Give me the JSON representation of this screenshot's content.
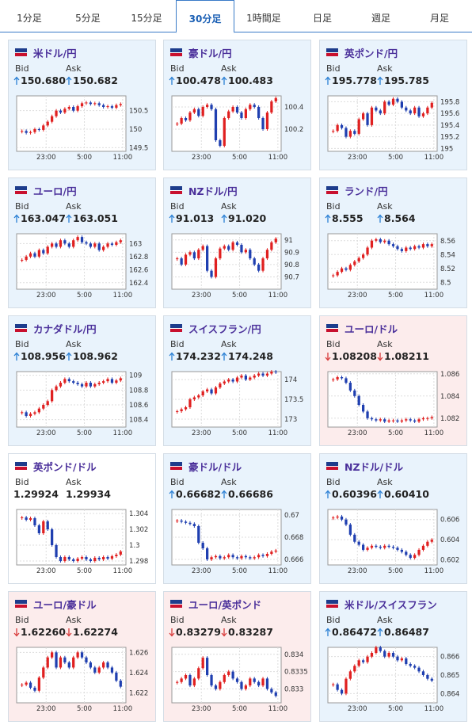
{
  "tabs": [
    "1分足",
    "5分足",
    "15分足",
    "30分足",
    "1時間足",
    "日足",
    "週足",
    "月足"
  ],
  "active_tab": 3,
  "panels": [
    {
      "title": "米ドル/円",
      "bid_label": "Bid",
      "ask_label": "Ask",
      "bid": "150.680",
      "ask": "150.682",
      "direction": "up",
      "chart": {
        "ylim": [
          149.4,
          150.9
        ],
        "yticks": [
          149.5,
          150,
          150.5
        ],
        "xticks": [
          "23:00",
          "5:00",
          "11:00"
        ],
        "closes": [
          149.95,
          149.9,
          149.92,
          150.0,
          149.98,
          150.1,
          150.2,
          150.35,
          150.5,
          150.45,
          150.55,
          150.6,
          150.5,
          150.62,
          150.7,
          150.72,
          150.68,
          150.7,
          150.65,
          150.6,
          150.62,
          150.58,
          150.65,
          150.68
        ]
      }
    },
    {
      "title": "豪ドル/円",
      "bid_label": "Bid",
      "ask_label": "Ask",
      "bid": "100.478",
      "ask": "100.483",
      "direction": "up",
      "chart": {
        "ylim": [
          100.0,
          100.5
        ],
        "yticks": [
          100.2,
          100.4
        ],
        "xticks": [
          "23:00",
          "5:00",
          "11:00"
        ],
        "closes": [
          100.25,
          100.3,
          100.28,
          100.35,
          100.38,
          100.32,
          100.4,
          100.42,
          100.38,
          100.1,
          100.05,
          100.3,
          100.36,
          100.4,
          100.35,
          100.3,
          100.38,
          100.42,
          100.4,
          100.3,
          100.2,
          100.35,
          100.45,
          100.48
        ]
      }
    },
    {
      "title": "英ポンド/円",
      "bid_label": "Bid",
      "ask_label": "Ask",
      "bid": "195.778",
      "ask": "195.785",
      "direction": "up",
      "chart": {
        "ylim": [
          194.95,
          195.9
        ],
        "yticks": [
          195,
          195.2,
          195.4,
          195.6,
          195.8
        ],
        "xticks": [
          "23:00",
          "5:00",
          "11:00"
        ],
        "closes": [
          195.3,
          195.4,
          195.35,
          195.2,
          195.3,
          195.25,
          195.5,
          195.6,
          195.4,
          195.7,
          195.65,
          195.6,
          195.8,
          195.75,
          195.85,
          195.8,
          195.7,
          195.65,
          195.6,
          195.7,
          195.55,
          195.6,
          195.7,
          195.78
        ]
      }
    },
    {
      "title": "ユーロ/円",
      "bid_label": "Bid",
      "ask_label": "Ask",
      "bid": "163.047",
      "ask": "163.051",
      "direction": "up",
      "chart": {
        "ylim": [
          162.3,
          163.15
        ],
        "yticks": [
          162.4,
          162.6,
          162.8,
          163
        ],
        "xticks": [
          "23:00",
          "5:00",
          "11:00"
        ],
        "closes": [
          162.75,
          162.8,
          162.85,
          162.8,
          162.9,
          162.85,
          162.95,
          163,
          162.95,
          163.05,
          163.0,
          162.95,
          163.05,
          163.1,
          163.02,
          163.0,
          162.95,
          163.0,
          162.9,
          162.95,
          163.0,
          162.98,
          163.02,
          163.05
        ]
      }
    },
    {
      "title": "NZドル/円",
      "bid_label": "Bid",
      "ask_label": "Ask",
      "bid": "91.013",
      "ask": "91.020",
      "direction": "up",
      "chart": {
        "ylim": [
          90.6,
          91.05
        ],
        "yticks": [
          90.7,
          90.8,
          90.9,
          91
        ],
        "xticks": [
          "23:00",
          "5:00",
          "11:00"
        ],
        "closes": [
          90.85,
          90.8,
          90.88,
          90.9,
          90.85,
          90.92,
          90.95,
          90.75,
          90.7,
          90.85,
          90.93,
          90.95,
          90.92,
          90.98,
          90.96,
          90.9,
          90.92,
          90.85,
          90.8,
          90.75,
          90.85,
          90.92,
          90.98,
          91.01
        ]
      }
    },
    {
      "title": "ランド/円",
      "bid_label": "Bid",
      "ask_label": "Ask",
      "bid": "8.555",
      "ask": "8.564",
      "direction": "up",
      "chart": {
        "ylim": [
          8.49,
          8.57
        ],
        "yticks": [
          8.5,
          8.52,
          8.54,
          8.56
        ],
        "xticks": [
          "23:00",
          "5:00",
          "11:00"
        ],
        "closes": [
          8.51,
          8.515,
          8.52,
          8.518,
          8.525,
          8.53,
          8.535,
          8.54,
          8.55,
          8.56,
          8.562,
          8.558,
          8.56,
          8.555,
          8.552,
          8.548,
          8.545,
          8.55,
          8.548,
          8.552,
          8.55,
          8.555,
          8.552,
          8.555
        ]
      }
    },
    {
      "title": "カナダドル/円",
      "bid_label": "Bid",
      "ask_label": "Ask",
      "bid": "108.956",
      "ask": "108.962",
      "direction": "up",
      "chart": {
        "ylim": [
          108.3,
          109.05
        ],
        "yticks": [
          108.4,
          108.6,
          108.8,
          109
        ],
        "xticks": [
          "23:00",
          "5:00",
          "11:00"
        ],
        "closes": [
          108.5,
          108.45,
          108.48,
          108.5,
          108.55,
          108.6,
          108.65,
          108.8,
          108.85,
          108.9,
          108.95,
          108.92,
          108.9,
          108.88,
          108.85,
          108.9,
          108.85,
          108.88,
          108.9,
          108.92,
          108.95,
          108.9,
          108.93,
          108.96
        ]
      }
    },
    {
      "title": "スイスフラン/円",
      "bid_label": "Bid",
      "ask_label": "Ask",
      "bid": "174.232",
      "ask": "174.248",
      "direction": "up",
      "chart": {
        "ylim": [
          172.8,
          174.2
        ],
        "yticks": [
          173,
          173.5,
          174
        ],
        "xticks": [
          "23:00",
          "5:00",
          "11:00"
        ],
        "closes": [
          173.2,
          173.25,
          173.3,
          173.5,
          173.55,
          173.6,
          173.7,
          173.75,
          173.65,
          173.8,
          173.9,
          173.95,
          174.0,
          173.95,
          174.05,
          174.1,
          174.0,
          174.05,
          174.1,
          174.15,
          174.1,
          174.15,
          174.2,
          174.18
        ]
      }
    },
    {
      "title": "ユーロ/ドル",
      "bid_label": "Bid",
      "ask_label": "Ask",
      "bid": "1.08208",
      "ask": "1.08211",
      "direction": "down",
      "chart": {
        "ylim": [
          1.0812,
          1.0862
        ],
        "yticks": [
          1.082,
          1.084,
          1.086
        ],
        "xticks": [
          "23:00",
          "5:00",
          "11:00"
        ],
        "closes": [
          1.0855,
          1.0857,
          1.0856,
          1.0852,
          1.0845,
          1.084,
          1.0832,
          1.0826,
          1.082,
          1.0819,
          1.0818,
          1.0819,
          1.0817,
          1.0818,
          1.0818,
          1.0817,
          1.0818,
          1.0819,
          1.0818,
          1.0817,
          1.0819,
          1.082,
          1.082,
          1.0821
        ]
      }
    },
    {
      "title": "英ポンド/ドル",
      "bid_label": "Bid",
      "ask_label": "Ask",
      "bid": "1.29924",
      "ask": "1.29934",
      "direction": "none",
      "chart": {
        "ylim": [
          1.2975,
          1.3045
        ],
        "yticks": [
          1.298,
          1.3,
          1.302,
          1.304
        ],
        "xticks": [
          "23:00",
          "5:00",
          "11:00"
        ],
        "closes": [
          1.3035,
          1.3032,
          1.3034,
          1.3025,
          1.3015,
          1.303,
          1.302,
          1.3,
          1.2985,
          1.298,
          1.2985,
          1.2982,
          1.298,
          1.2983,
          1.2985,
          1.2982,
          1.298,
          1.2984,
          1.2982,
          1.2985,
          1.2983,
          1.2986,
          1.2988,
          1.2992
        ]
      }
    },
    {
      "title": "豪ドル/ドル",
      "bid_label": "Bid",
      "ask_label": "Ask",
      "bid": "0.66682",
      "ask": "0.66686",
      "direction": "up",
      "chart": {
        "ylim": [
          0.6655,
          0.6705
        ],
        "yticks": [
          0.666,
          0.668,
          0.67
        ],
        "xticks": [
          "23:00",
          "5:00",
          "11:00"
        ],
        "closes": [
          0.6695,
          0.6694,
          0.6693,
          0.6692,
          0.669,
          0.6675,
          0.667,
          0.666,
          0.6662,
          0.6663,
          0.6661,
          0.6662,
          0.6664,
          0.6662,
          0.6661,
          0.6663,
          0.6662,
          0.6661,
          0.6662,
          0.6664,
          0.6663,
          0.6665,
          0.6667,
          0.6668
        ]
      }
    },
    {
      "title": "NZドル/ドル",
      "bid_label": "Bid",
      "ask_label": "Ask",
      "bid": "0.60396",
      "ask": "0.60410",
      "direction": "up",
      "chart": {
        "ylim": [
          0.6015,
          0.607
        ],
        "yticks": [
          0.602,
          0.604,
          0.606
        ],
        "xticks": [
          "23:00",
          "5:00",
          "11:00"
        ],
        "closes": [
          0.6062,
          0.6063,
          0.606,
          0.6055,
          0.6045,
          0.6038,
          0.6035,
          0.603,
          0.6032,
          0.6034,
          0.6033,
          0.6032,
          0.6034,
          0.6033,
          0.6032,
          0.603,
          0.6028,
          0.6025,
          0.6022,
          0.6025,
          0.603,
          0.6034,
          0.6038,
          0.604
        ]
      }
    },
    {
      "title": "ユーロ/豪ドル",
      "bid_label": "Bid",
      "ask_label": "Ask",
      "bid": "1.62260",
      "ask": "1.62274",
      "direction": "down",
      "chart": {
        "ylim": [
          1.621,
          1.6265
        ],
        "yticks": [
          1.622,
          1.624,
          1.626
        ],
        "xticks": [
          "23:00",
          "5:00",
          "11:00"
        ],
        "closes": [
          1.6228,
          1.623,
          1.6225,
          1.6222,
          1.6235,
          1.6245,
          1.6255,
          1.626,
          1.6245,
          1.6255,
          1.625,
          1.6245,
          1.6255,
          1.626,
          1.6255,
          1.625,
          1.6245,
          1.624,
          1.6245,
          1.625,
          1.6245,
          1.624,
          1.6232,
          1.6226
        ]
      }
    },
    {
      "title": "ユーロ/英ポンド",
      "bid_label": "Bid",
      "ask_label": "Ask",
      "bid": "0.83279",
      "ask": "0.83287",
      "direction": "down",
      "chart": {
        "ylim": [
          0.8326,
          0.8342
        ],
        "yticks": [
          0.833,
          0.8335,
          0.834
        ],
        "xticks": [
          "23:00",
          "5:00",
          "11:00"
        ],
        "closes": [
          0.8332,
          0.8333,
          0.8334,
          0.8331,
          0.8333,
          0.8336,
          0.8339,
          0.8334,
          0.8331,
          0.833,
          0.8332,
          0.8334,
          0.8335,
          0.8333,
          0.8332,
          0.833,
          0.8331,
          0.8333,
          0.8332,
          0.8331,
          0.8333,
          0.833,
          0.8329,
          0.8328
        ]
      }
    },
    {
      "title": "米ドル/スイスフラン",
      "bid_label": "Bid",
      "ask_label": "Ask",
      "bid": "0.86472",
      "ask": "0.86487",
      "direction": "up",
      "chart": {
        "ylim": [
          0.8635,
          0.8665
        ],
        "yticks": [
          0.864,
          0.865,
          0.866
        ],
        "xticks": [
          "23:00",
          "5:00",
          "11:00"
        ],
        "closes": [
          0.8645,
          0.8642,
          0.864,
          0.8648,
          0.8652,
          0.8655,
          0.8658,
          0.8657,
          0.866,
          0.8662,
          0.8665,
          0.8663,
          0.866,
          0.8662,
          0.866,
          0.8658,
          0.8659,
          0.8656,
          0.8655,
          0.8654,
          0.8652,
          0.865,
          0.8648,
          0.8647
        ]
      }
    }
  ]
}
